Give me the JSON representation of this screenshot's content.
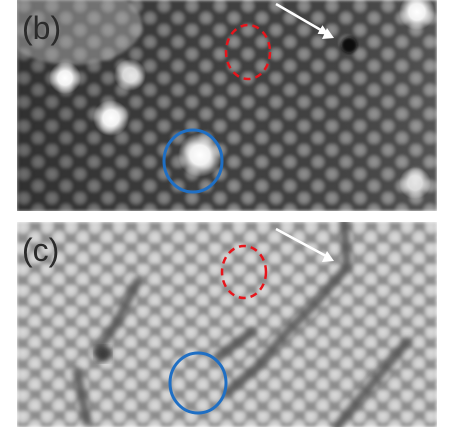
{
  "panels": [
    {
      "label": "(b)",
      "style": "raw STM topograph, bright protrusions on dark lattice"
    },
    {
      "label": "(c)",
      "style": "filtered topograph, bright round atoms with dark trench lines"
    }
  ],
  "annotation_colors": {
    "arrow": "#ffffff",
    "dashed_circle": "#e8141b",
    "solid_circle": "#1f6fc4"
  }
}
